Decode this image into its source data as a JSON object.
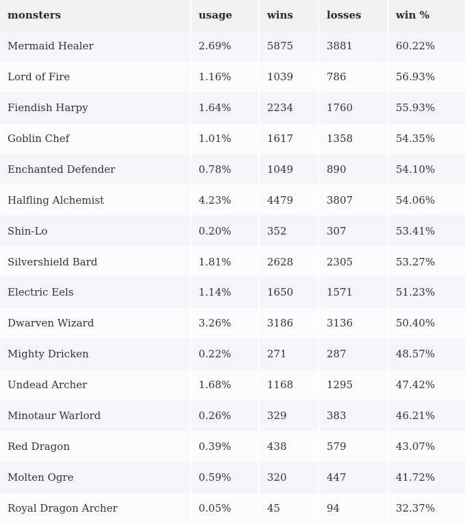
{
  "table": {
    "header": [
      "monsters",
      "usage",
      "wins",
      "losses",
      "win %"
    ],
    "rows": [
      [
        "Mermaid Healer",
        "2.69%",
        "5875",
        "3881",
        "60.22%"
      ],
      [
        "Lord of Fire",
        "1.16%",
        "1039",
        "786",
        "56.93%"
      ],
      [
        "Fiendish Harpy",
        "1.64%",
        "2234",
        "1760",
        "55.93%"
      ],
      [
        "Goblin Chef",
        "1.01%",
        "1617",
        "1358",
        "54.35%"
      ],
      [
        "Enchanted Defender",
        "0.78%",
        "1049",
        "890",
        "54.10%"
      ],
      [
        "Halfling Alchemist",
        "4.23%",
        "4479",
        "3807",
        "54.06%"
      ],
      [
        "Shin-Lo",
        "0.20%",
        "352",
        "307",
        "53.41%"
      ],
      [
        "Silvershield Bard",
        "1.81%",
        "2628",
        "2305",
        "53.27%"
      ],
      [
        "Electric Eels",
        "1.14%",
        "1650",
        "1571",
        "51.23%"
      ],
      [
        "Dwarven Wizard",
        "3.26%",
        "3186",
        "3136",
        "50.40%"
      ],
      [
        "Mighty Dricken",
        "0.22%",
        "271",
        "287",
        "48.57%"
      ],
      [
        "Undead Archer",
        "1.68%",
        "1168",
        "1295",
        "47.42%"
      ],
      [
        "Minotaur Warlord",
        "0.26%",
        "329",
        "383",
        "46.21%"
      ],
      [
        "Red Dragon",
        "0.39%",
        "438",
        "579",
        "43.07%"
      ],
      [
        "Molten Ogre",
        "0.59%",
        "320",
        "447",
        "41.72%"
      ],
      [
        "Royal Dragon Archer",
        "0.05%",
        "45",
        "94",
        "32.37%"
      ]
    ]
  }
}
